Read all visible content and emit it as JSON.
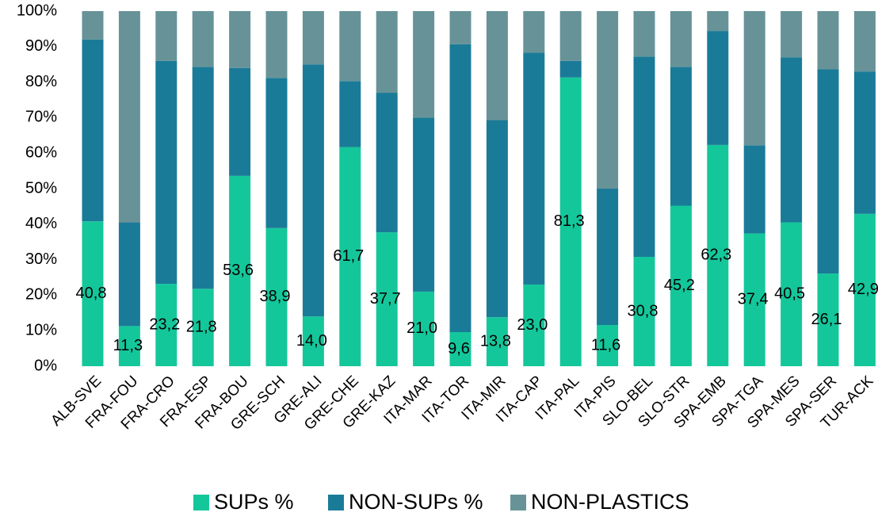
{
  "chart_data": {
    "type": "stacked_bar",
    "categories": [
      "ALB-SVE",
      "FRA-FOU",
      "FRA-CRO",
      "FRA-ESP",
      "FRA-BOU",
      "GRE-SCH",
      "GRE-ALI",
      "GRE-CHE",
      "GRE-KAZ",
      "ITA-MAR",
      "ITA-TOR",
      "ITA-MIR",
      "ITA-CAP",
      "ITA-PAL",
      "ITA-PIS",
      "SLO-BEL",
      "SLO-STR",
      "SPA-EMB",
      "SPA-TGA",
      "SPA-MES",
      "SPA-SER",
      "TUR-ACK"
    ],
    "series": [
      {
        "name": "SUPs %",
        "color": "#14c79b",
        "values": [
          40.8,
          11.3,
          23.2,
          21.8,
          53.6,
          38.9,
          14.0,
          61.7,
          37.7,
          21.0,
          9.6,
          13.8,
          23.0,
          81.3,
          11.6,
          30.8,
          45.2,
          62.3,
          37.4,
          40.5,
          26.1,
          42.9
        ],
        "value_labels": [
          "40,8",
          "11,3",
          "23,2",
          "21,8",
          "53,6",
          "38,9",
          "14,0",
          "61,7",
          "37,7",
          "21,0",
          "9,6",
          "13,8",
          "23,0",
          "81,3",
          "11,6",
          "30,8",
          "45,2",
          "62,3",
          "37,4",
          "40,5",
          "26,1",
          "42,9"
        ]
      },
      {
        "name": "NON-SUPs %",
        "color": "#1a7b98",
        "values": [
          51.2,
          29.2,
          62.8,
          62.5,
          30.4,
          42.3,
          71.0,
          18.6,
          39.3,
          49.0,
          81.1,
          55.5,
          65.3,
          4.7,
          38.4,
          56.4,
          39.1,
          32.1,
          24.8,
          46.5,
          57.5,
          40.1
        ]
      },
      {
        "name": "NON-PLASTICS",
        "color": "#679398",
        "values": [
          8.0,
          59.5,
          14.0,
          15.7,
          16.0,
          18.8,
          15.0,
          19.7,
          23.0,
          30.0,
          9.3,
          30.7,
          11.7,
          14.0,
          50.0,
          12.8,
          15.7,
          5.6,
          37.8,
          13.0,
          16.4,
          17.0
        ]
      }
    ],
    "ylim": [
      0,
      100
    ],
    "yticks": [
      {
        "value": 0,
        "label": "0%"
      },
      {
        "value": 10,
        "label": "10%"
      },
      {
        "value": 20,
        "label": "20%"
      },
      {
        "value": 30,
        "label": "30%"
      },
      {
        "value": 40,
        "label": "40%"
      },
      {
        "value": 50,
        "label": "50%"
      },
      {
        "value": 60,
        "label": "60%"
      },
      {
        "value": 70,
        "label": "70%"
      },
      {
        "value": 80,
        "label": "80%"
      },
      {
        "value": 90,
        "label": "90%"
      },
      {
        "value": 100,
        "label": "100%"
      }
    ],
    "legend": "bottom"
  }
}
